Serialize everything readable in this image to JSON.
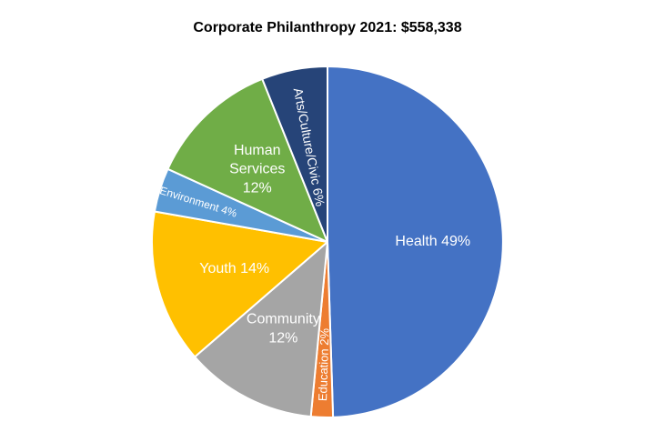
{
  "chart_data": {
    "type": "pie",
    "title": "Corporate Philanthropy 2021: $558,338",
    "slices": [
      {
        "name": "Health",
        "value": 49,
        "label_lines": [
          "Health 49%"
        ],
        "color": "#4472C4"
      },
      {
        "name": "Education",
        "value": 2,
        "label_lines": [
          "Education 2%"
        ],
        "color": "#ED7D31"
      },
      {
        "name": "Community",
        "value": 12,
        "label_lines": [
          "Community",
          "12%"
        ],
        "color": "#A5A5A5"
      },
      {
        "name": "Youth",
        "value": 14,
        "label_lines": [
          "Youth 14%"
        ],
        "color": "#FFC000"
      },
      {
        "name": "Environment",
        "value": 4,
        "label_lines": [
          "Environment 4%"
        ],
        "color": "#5B9BD5"
      },
      {
        "name": "Human Services",
        "value": 12,
        "label_lines": [
          "Human",
          "Services",
          "12%"
        ],
        "color": "#70AD47"
      },
      {
        "name": "Arts/Culture/Civic",
        "value": 6,
        "label_lines": [
          "Arts/Culture/Civic 6%"
        ],
        "color": "#264478"
      }
    ]
  }
}
